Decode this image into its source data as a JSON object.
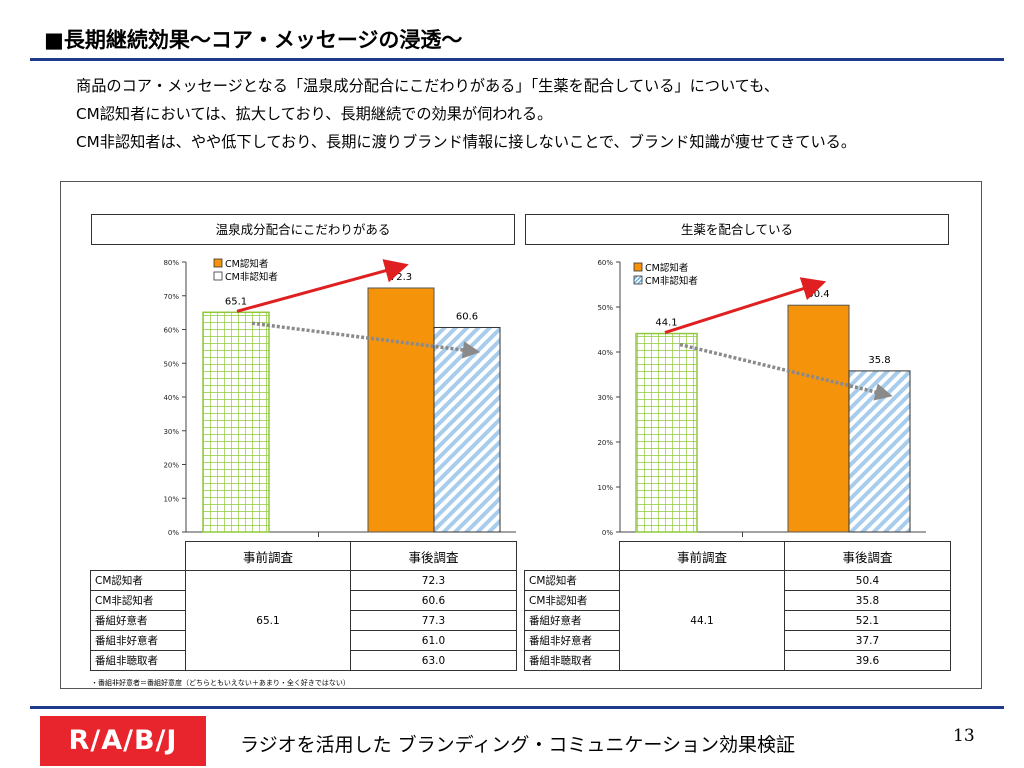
{
  "header": {
    "title": "■長期継続効果～コア・メッセージの浸透～",
    "lines": [
      "商品のコア・メッセージとなる「温泉成分配合にこだわりがある」「生薬を配合している」についても、",
      "CM認知者においては、拡大しており、長期継続での効果が伺われる。",
      "CM非認知者は、やや低下しており、長期に渡りブランド情報に接しないことで、ブランド知識が痩せてきている。"
    ]
  },
  "chart_data": [
    {
      "type": "bar",
      "title": "温泉成分配合にこだわりがある",
      "categories": [
        "事前調査",
        "事後調査"
      ],
      "series": [
        {
          "name": "CM認知者",
          "values": [
            65.1,
            72.3
          ]
        },
        {
          "name": "CM非認知者",
          "values": [
            65.1,
            60.6
          ]
        }
      ],
      "yticks": [
        "0%",
        "10%",
        "20%",
        "30%",
        "40%",
        "50%",
        "60%",
        "70%",
        "80%"
      ],
      "ylim": [
        0,
        80
      ],
      "legend": "top-left",
      "colors": {
        "aware": "#f5940b",
        "pre": "#8fc93a",
        "nonaware": "#a8cdec"
      }
    },
    {
      "type": "bar",
      "title": "生薬を配合している",
      "categories": [
        "事前調査",
        "事後調査"
      ],
      "series": [
        {
          "name": "CM認知者",
          "values": [
            44.1,
            50.4
          ]
        },
        {
          "name": "CM非認知者",
          "values": [
            44.1,
            35.8
          ]
        }
      ],
      "yticks": [
        "0%",
        "10%",
        "20%",
        "30%",
        "40%",
        "50%",
        "60%"
      ],
      "ylim": [
        0,
        60
      ],
      "legend": "top-left",
      "colors": {
        "aware": "#f5940b",
        "pre": "#8fc93a",
        "nonaware": "#a8cdec"
      }
    }
  ],
  "tables": [
    {
      "headers": [
        "事前調査",
        "事後調査"
      ],
      "pre_value": "65.1",
      "rows": [
        {
          "label": "CM認知者",
          "post": "72.3"
        },
        {
          "label": "CM非認知者",
          "post": "60.6"
        },
        {
          "label": "番組好意者",
          "post": "77.3"
        },
        {
          "label": "番組非好意者",
          "post": "61.0"
        },
        {
          "label": "番組非聴取者",
          "post": "63.0"
        }
      ]
    },
    {
      "headers": [
        "事前調査",
        "事後調査"
      ],
      "pre_value": "44.1",
      "rows": [
        {
          "label": "CM認知者",
          "post": "50.4"
        },
        {
          "label": "CM非認知者",
          "post": "35.8"
        },
        {
          "label": "番組好意者",
          "post": "52.1"
        },
        {
          "label": "番組非好意者",
          "post": "37.7"
        },
        {
          "label": "番組非聴取者",
          "post": "39.6"
        }
      ]
    }
  ],
  "note": "・番組非好意者＝番組好意度（どちらともいえない＋あまり・全く好きではない）",
  "footer": {
    "logo": "R/A/B/J",
    "text": "ラジオを活用した ブランディング・コミュニケーション効果検証",
    "page": "13"
  }
}
